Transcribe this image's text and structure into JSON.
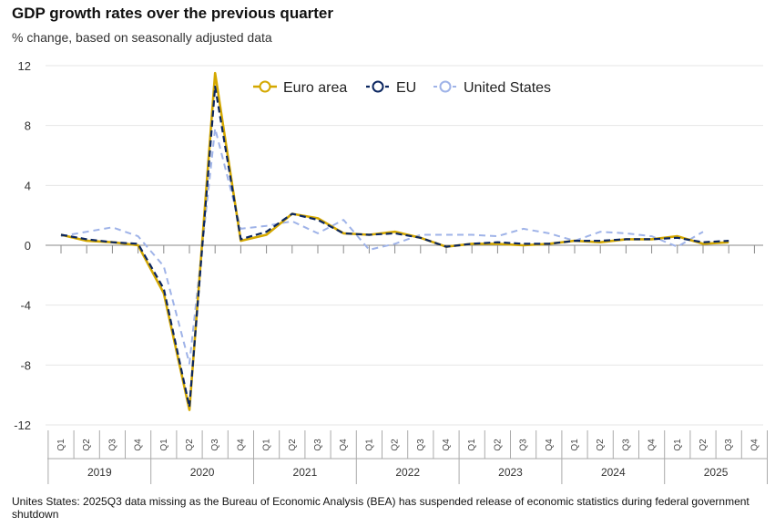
{
  "header": {
    "title": "GDP growth rates over the previous quarter",
    "subtitle": "% change, based on seasonally adjusted data"
  },
  "footnote": "Unites States: 2025Q3 data missing as the Bureau of Economic Analysis (BEA) has suspended release of economic statistics during federal government shutdown",
  "chart_data": {
    "type": "line",
    "title": "GDP growth rates over the previous quarter",
    "subtitle": "% change, based on seasonally adjusted data",
    "ylim": [
      -12,
      12
    ],
    "yticks": [
      12,
      8,
      4,
      0,
      -4,
      -8,
      -12
    ],
    "ytick_labels": [
      "12",
      "8",
      "4",
      "0",
      "-4",
      "-8",
      "-12"
    ],
    "quarters": [
      "Q1",
      "Q2",
      "Q3",
      "Q4",
      "Q1",
      "Q2",
      "Q3",
      "Q4",
      "Q1",
      "Q2",
      "Q3",
      "Q4",
      "Q1",
      "Q2",
      "Q3",
      "Q4",
      "Q1",
      "Q2",
      "Q3",
      "Q4",
      "Q1",
      "Q2",
      "Q3",
      "Q4",
      "Q1",
      "Q2",
      "Q3",
      "Q4"
    ],
    "years": [
      "2019",
      "2020",
      "2021",
      "2022",
      "2023",
      "2024",
      "2025"
    ],
    "legend_position": "top",
    "grid": "horizontal",
    "series": [
      {
        "name": "Euro area",
        "color": "#d4a800",
        "style": "solid",
        "values": [
          0.7,
          0.3,
          0.2,
          0.0,
          -3.2,
          -11.0,
          11.5,
          0.3,
          0.7,
          2.1,
          1.8,
          0.8,
          0.7,
          0.9,
          0.5,
          -0.1,
          0.1,
          0.1,
          0.0,
          0.1,
          0.3,
          0.2,
          0.4,
          0.4,
          0.6,
          0.1,
          0.2,
          null
        ]
      },
      {
        "name": "EU",
        "color": "#0b2660",
        "style": "dashed",
        "values": [
          0.7,
          0.4,
          0.2,
          0.1,
          -2.9,
          -10.8,
          10.6,
          0.4,
          0.9,
          2.1,
          1.7,
          0.8,
          0.7,
          0.8,
          0.5,
          -0.1,
          0.1,
          0.2,
          0.1,
          0.1,
          0.3,
          0.3,
          0.4,
          0.4,
          0.5,
          0.2,
          0.3,
          null
        ]
      },
      {
        "name": "United States",
        "color": "#9fb3e8",
        "style": "dashed",
        "values": [
          0.6,
          0.9,
          1.2,
          0.6,
          -1.4,
          -7.9,
          7.8,
          1.1,
          1.3,
          1.6,
          0.8,
          1.7,
          -0.3,
          0.1,
          0.7,
          0.7,
          0.7,
          0.6,
          1.1,
          0.8,
          0.3,
          0.9,
          0.8,
          0.6,
          -0.1,
          0.9,
          null,
          null
        ]
      }
    ]
  }
}
